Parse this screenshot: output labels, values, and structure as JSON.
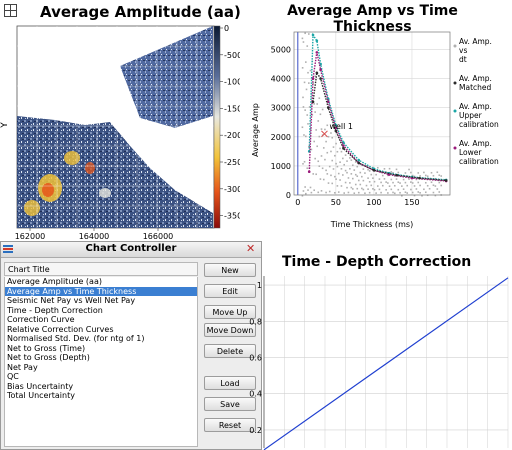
{
  "map": {
    "title": "Average Amplitude (aa)",
    "ylabel": "Y",
    "colorbar_ticks": [
      "0",
      "-500",
      "-1000",
      "-1500",
      "-2000",
      "-2500",
      "-3000",
      "-3500"
    ],
    "x_ticks": [
      "162000",
      "164000",
      "166000"
    ]
  },
  "xplot": {
    "title": "Average Amp vs Time Thickness",
    "ylabel": "Average Amp",
    "xlabel": "Time Thickness (ms)",
    "annotation": "well 1",
    "legend": [
      {
        "label": "Av. Amp. vs dt",
        "color": "#b0b0b0"
      },
      {
        "label": "Av. Amp. Matched",
        "color": "#2a2a2a"
      },
      {
        "label": "Av. Amp. Upper calibration",
        "color": "#1aa6a6"
      },
      {
        "label": "Av. Amp. Lower calibration",
        "color": "#9a1a7a"
      }
    ]
  },
  "chart_data": [
    {
      "type": "scatter",
      "title": "Average Amp vs Time Thickness",
      "xlabel": "Time Thickness (ms)",
      "ylabel": "Average Amp",
      "xlim": [
        -5,
        200
      ],
      "ylim": [
        0,
        5600
      ],
      "x_ticks": [
        0,
        50,
        100,
        150
      ],
      "y_ticks": [
        0,
        1000,
        2000,
        3000,
        4000,
        5000
      ],
      "series": [
        {
          "name": "Av. Amp. Upper calibration",
          "x": [
            15,
            20,
            25,
            30,
            40,
            50,
            60,
            80,
            100,
            120,
            150,
            195
          ],
          "y": [
            1500,
            5500,
            5300,
            4500,
            3300,
            2400,
            1800,
            1200,
            900,
            750,
            620,
            520
          ]
        },
        {
          "name": "Av. Amp. Lower calibration",
          "x": [
            15,
            20,
            25,
            30,
            40,
            50,
            60,
            80,
            100,
            120,
            150,
            195
          ],
          "y": [
            800,
            4000,
            4900,
            4300,
            3200,
            2300,
            1700,
            1100,
            850,
            700,
            580,
            480
          ]
        },
        {
          "name": "Av. Amp. Matched",
          "x": [
            20,
            25,
            30,
            40,
            50,
            60,
            80,
            100,
            130,
            160,
            195
          ],
          "y": [
            3200,
            4200,
            4000,
            3000,
            2200,
            1600,
            1100,
            850,
            680,
            580,
            500
          ]
        }
      ],
      "annotation_point": {
        "x": 35,
        "y": 2100
      }
    },
    {
      "type": "line",
      "title": "Time - Depth Correction",
      "y_ticks": [
        0.2,
        0.4,
        0.6,
        0.8,
        1
      ],
      "ylim": [
        0.1,
        1.05
      ],
      "series": [
        {
          "x": [
            0,
            1
          ],
          "y": [
            0.09,
            1.04
          ]
        }
      ]
    }
  ],
  "dialog": {
    "title": "Chart Controller",
    "list_header": "Chart Title",
    "items": [
      "Average Amplitude (aa)",
      "Average Amp vs Time Thickness",
      "Seismic Net Pay vs Well Net Pay",
      "Time - Depth Correction",
      "Correction Curve",
      "Relative Correction Curves",
      "Normalised Std. Dev. (for ntg of 1)",
      "Net to Gross (Time)",
      "Net to Gross (Depth)",
      "Net Pay",
      "QC",
      "Bias Uncertainty",
      "Total Uncertainty"
    ],
    "selected_index": 1,
    "buttons": {
      "new": "New",
      "edit": "Edit",
      "move_up": "Move Up",
      "move_down": "Move Down",
      "delete": "Delete",
      "load": "Load",
      "save": "Save",
      "reset": "Reset"
    },
    "close_glyph": "✕"
  },
  "depth": {
    "title": "Time - Depth Correction"
  }
}
